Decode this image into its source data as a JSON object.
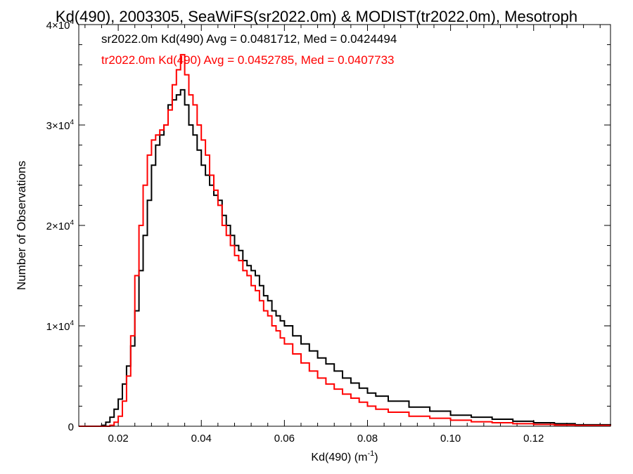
{
  "chart_data": {
    "type": "line",
    "title": "Kd(490), 2003305, SeaWiFS(sr2022.0m) & MODIST(tr2022.0m), Mesotroph",
    "xlabel_main": "Kd(490) (m",
    "xlabel_sup": "-1",
    "xlabel_close": ")",
    "ylabel": "Number of Observations",
    "xlim": [
      0.0105,
      0.1385
    ],
    "ylim": [
      0,
      40000
    ],
    "x_ticks": [
      0.02,
      0.04,
      0.06,
      0.08,
      0.1,
      0.12
    ],
    "x_tick_labels": [
      "0.02",
      "0.04",
      "0.06",
      "0.08",
      "0.10",
      "0.12"
    ],
    "y_ticks": [
      {
        "value": 0,
        "base": "0",
        "exp": ""
      },
      {
        "value": 10000,
        "base": "1×10",
        "exp": "4"
      },
      {
        "value": 20000,
        "base": "2×10",
        "exp": "4"
      },
      {
        "value": 30000,
        "base": "3×10",
        "exp": "4"
      },
      {
        "value": 40000,
        "base": "4×10",
        "exp": "4"
      }
    ],
    "annotations": [
      {
        "text": "sr2022.0m Kd(490) Avg = 0.0481712, Med = 0.0424494",
        "color": "#000000"
      },
      {
        "text": "tr2022.0m Kd(490) Avg = 0.0452785, Med = 0.0407733",
        "color": "#ff0000"
      }
    ],
    "series": [
      {
        "color": "#000000",
        "x": [
          0.0105,
          0.014,
          0.016,
          0.017,
          0.018,
          0.019,
          0.02,
          0.021,
          0.022,
          0.023,
          0.024,
          0.025,
          0.026,
          0.027,
          0.028,
          0.029,
          0.03,
          0.031,
          0.032,
          0.033,
          0.034,
          0.035,
          0.036,
          0.037,
          0.038,
          0.039,
          0.04,
          0.041,
          0.042,
          0.043,
          0.044,
          0.045,
          0.046,
          0.047,
          0.048,
          0.049,
          0.05,
          0.051,
          0.052,
          0.053,
          0.054,
          0.055,
          0.056,
          0.057,
          0.058,
          0.059,
          0.06,
          0.062,
          0.064,
          0.066,
          0.068,
          0.07,
          0.072,
          0.074,
          0.076,
          0.078,
          0.08,
          0.082,
          0.085,
          0.09,
          0.095,
          0.1,
          0.105,
          0.11,
          0.115,
          0.12,
          0.125,
          0.13,
          0.1385
        ],
        "y": [
          0,
          0,
          100,
          400,
          900,
          1700,
          2700,
          4200,
          6000,
          8000,
          11500,
          15500,
          19000,
          22500,
          26000,
          28000,
          29000,
          30000,
          32000,
          32500,
          33000,
          33500,
          32000,
          30000,
          29000,
          27500,
          26000,
          25000,
          24000,
          23000,
          22500,
          21000,
          20000,
          19000,
          18000,
          17500,
          16500,
          16000,
          15500,
          15000,
          14000,
          13000,
          12500,
          11500,
          11000,
          10500,
          10000,
          9000,
          8200,
          7500,
          6800,
          6200,
          5500,
          4800,
          4300,
          3800,
          3300,
          3000,
          2500,
          1900,
          1500,
          1100,
          900,
          700,
          500,
          350,
          250,
          150,
          80
        ]
      },
      {
        "color": "#ff0000",
        "x": [
          0.0105,
          0.016,
          0.018,
          0.019,
          0.02,
          0.021,
          0.022,
          0.023,
          0.024,
          0.025,
          0.026,
          0.027,
          0.028,
          0.029,
          0.03,
          0.031,
          0.032,
          0.033,
          0.034,
          0.035,
          0.036,
          0.037,
          0.038,
          0.039,
          0.04,
          0.041,
          0.042,
          0.043,
          0.044,
          0.045,
          0.046,
          0.047,
          0.048,
          0.049,
          0.05,
          0.051,
          0.052,
          0.053,
          0.054,
          0.055,
          0.056,
          0.057,
          0.058,
          0.059,
          0.06,
          0.062,
          0.064,
          0.066,
          0.068,
          0.07,
          0.072,
          0.074,
          0.076,
          0.078,
          0.08,
          0.082,
          0.085,
          0.09,
          0.095,
          0.1,
          0.105,
          0.11,
          0.115,
          0.12,
          0.125,
          0.13,
          0.1385
        ],
        "y": [
          0,
          0,
          100,
          400,
          1000,
          2500,
          5000,
          9000,
          15000,
          20000,
          24000,
          27000,
          28500,
          29000,
          29500,
          30000,
          31500,
          34000,
          35500,
          37000,
          35000,
          33000,
          32000,
          30000,
          28500,
          27000,
          25000,
          23500,
          22000,
          20000,
          19000,
          18000,
          17000,
          16500,
          15500,
          15000,
          14000,
          13500,
          12500,
          11500,
          11000,
          10000,
          9500,
          8800,
          8200,
          7200,
          6300,
          5500,
          4800,
          4200,
          3700,
          3200,
          2800,
          2400,
          2000,
          1700,
          1400,
          1000,
          800,
          600,
          450,
          350,
          250,
          180,
          120,
          80,
          40
        ]
      }
    ]
  }
}
